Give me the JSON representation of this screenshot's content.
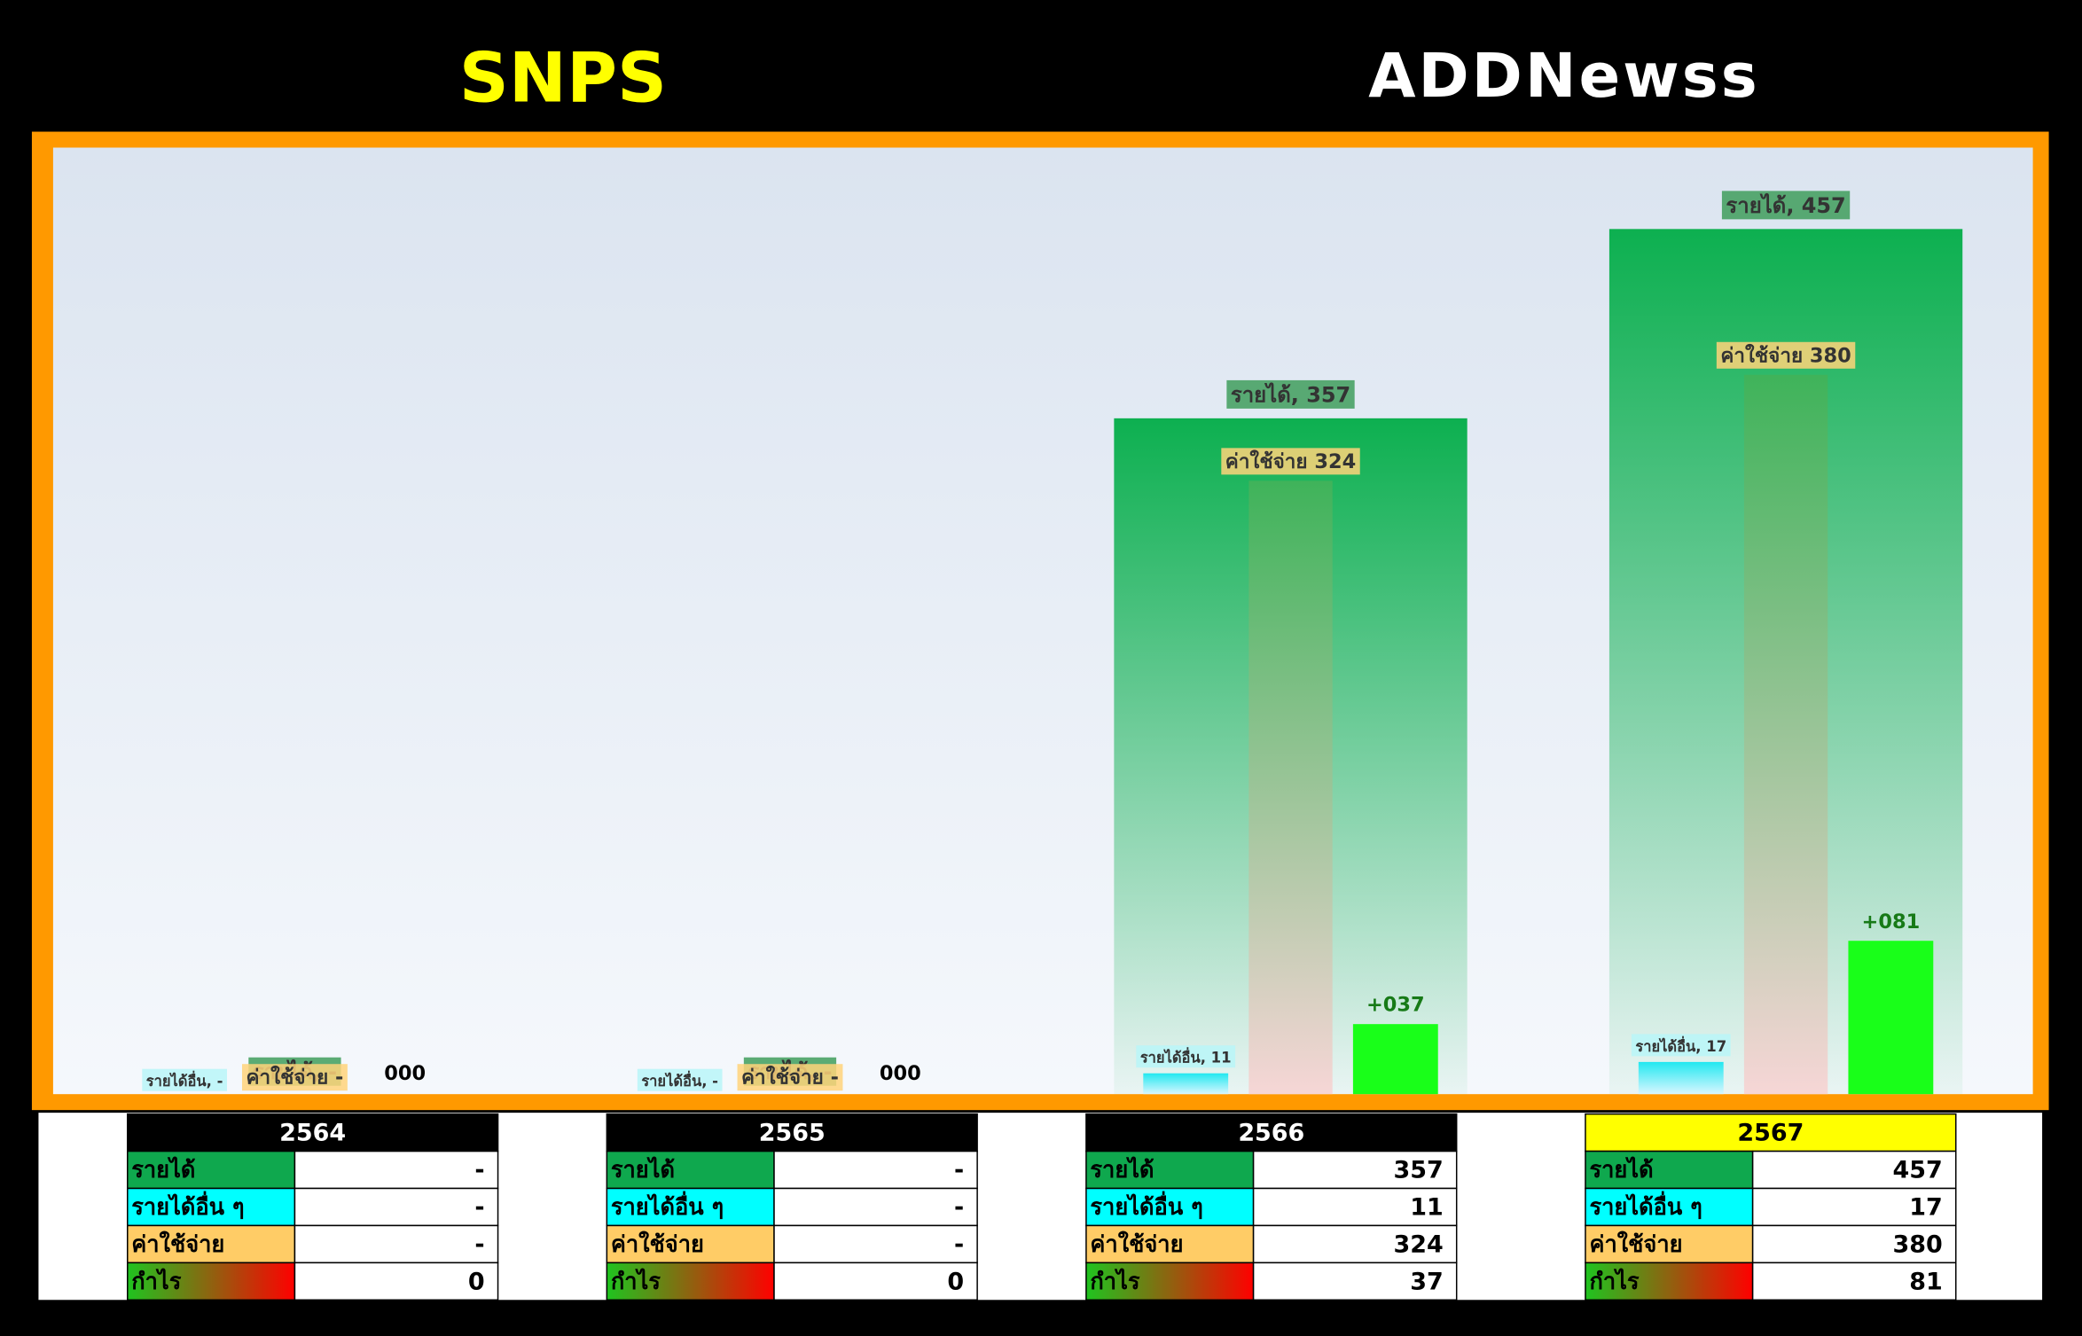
{
  "header": {
    "title": "SNPS",
    "logo": "ADDNewss"
  },
  "chart_data": {
    "type": "bar",
    "categories": [
      "2564",
      "2565",
      "2566",
      "2567"
    ],
    "ylim": [
      0,
      500
    ],
    "series": [
      {
        "name": "รายได้",
        "color": "#0db050",
        "fade": true,
        "label_bg": "#3f9e5c",
        "values": [
          0,
          0,
          357,
          457
        ],
        "value_labels": [
          "รายได้, -",
          "รายได้, -",
          "รายได้, 357",
          "รายได้, 457"
        ]
      },
      {
        "name": "รายได้อื่น ๆ",
        "color": "#22e8f0",
        "fade": false,
        "label_bg": "#b8f6f8",
        "values": [
          0,
          0,
          11,
          17
        ],
        "value_labels": [
          "รายได้อื่น, -",
          "รายได้อื่น, -",
          "รายได้อื่น, 11",
          "รายได้อื่น, 17"
        ]
      },
      {
        "name": "ค่าใช้จ่าย",
        "color": "#3fb35a",
        "fade": true,
        "label_bg": "#ffd47a",
        "values": [
          0,
          0,
          324,
          380
        ],
        "value_labels": [
          "ค่าใช้จ่าย -",
          "ค่าใช้จ่าย -",
          "ค่าใช้จ่าย 324",
          "ค่าใช้จ่าย 380"
        ]
      },
      {
        "name": "กำไร",
        "color": "#19ff19",
        "fade": false,
        "label_bg": null,
        "values": [
          0,
          0,
          37,
          81
        ],
        "value_labels": [
          "000",
          "000",
          "+037",
          "+081"
        ]
      }
    ]
  },
  "tables": [
    {
      "year": "2564",
      "header_bg": "#000000",
      "header_fg": "#ffffff",
      "rows": [
        [
          "รายได้",
          "-"
        ],
        [
          "รายได้อื่น ๆ",
          "-"
        ],
        [
          "ค่าใช้จ่าย",
          "-"
        ],
        [
          "กำไร",
          "0"
        ]
      ]
    },
    {
      "year": "2565",
      "header_bg": "#000000",
      "header_fg": "#ffffff",
      "rows": [
        [
          "รายได้",
          "-"
        ],
        [
          "รายได้อื่น ๆ",
          "-"
        ],
        [
          "ค่าใช้จ่าย",
          "-"
        ],
        [
          "กำไร",
          "0"
        ]
      ]
    },
    {
      "year": "2566",
      "header_bg": "#000000",
      "header_fg": "#ffffff",
      "rows": [
        [
          "รายได้",
          "357"
        ],
        [
          "รายได้อื่น ๆ",
          "11"
        ],
        [
          "ค่าใช้จ่าย",
          "324"
        ],
        [
          "กำไร",
          "37"
        ]
      ]
    },
    {
      "year": "2567",
      "header_bg": "#ffff00",
      "header_fg": "#000000",
      "rows": [
        [
          "รายได้",
          "457"
        ],
        [
          "รายได้อื่น ๆ",
          "17"
        ],
        [
          "ค่าใช้จ่าย",
          "380"
        ],
        [
          "กำไร",
          "81"
        ]
      ]
    }
  ]
}
